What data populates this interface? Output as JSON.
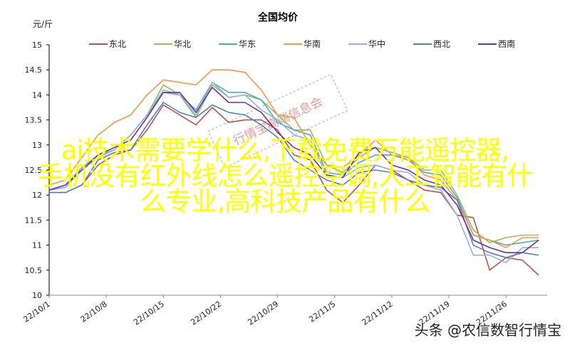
{
  "chart_data": {
    "type": "line",
    "title": "全国均价",
    "ylabel": "元/斤",
    "xlabel": "",
    "ylim": [
      10,
      15
    ],
    "yticks": [
      "10",
      "10.5",
      "11",
      "11.5",
      "12",
      "12.5",
      "13",
      "13.5",
      "14",
      "14.5",
      "15"
    ],
    "xticks": [
      "22/10/1",
      "22/10/8",
      "22/10/15",
      "22/10/22",
      "22/10/29",
      "22/11/5",
      "22/11/12",
      "22/11/19",
      "22/11/26"
    ],
    "grid": false,
    "legend_position": "top",
    "x": [
      "22/10/1",
      "22/10/3",
      "22/10/5",
      "22/10/7",
      "22/10/9",
      "22/10/11",
      "22/10/13",
      "22/10/15",
      "22/10/17",
      "22/10/19",
      "22/10/21",
      "22/10/23",
      "22/10/25",
      "22/10/27",
      "22/10/29",
      "22/10/31",
      "22/11/2",
      "22/11/4",
      "22/11/6",
      "22/11/8",
      "22/11/10",
      "22/11/12",
      "22/11/14",
      "22/11/16",
      "22/11/18",
      "22/11/20",
      "22/11/22",
      "22/11/24",
      "22/11/26",
      "22/11/28",
      "22/11/30"
    ],
    "series": [
      {
        "name": "东北",
        "color": "#c0504d",
        "values": [
          12.05,
          12.05,
          12.2,
          12.6,
          12.8,
          12.9,
          13.3,
          13.8,
          13.6,
          13.4,
          13.75,
          13.45,
          13.5,
          13.5,
          13.3,
          12.8,
          12.7,
          12.1,
          11.85,
          12.2,
          12.6,
          12.5,
          12.3,
          12.1,
          12.05,
          11.6,
          11.55,
          10.5,
          10.75,
          10.7,
          10.4
        ]
      },
      {
        "name": "华北",
        "color": "#9bbb59",
        "values": [
          12.1,
          12.15,
          12.5,
          12.75,
          12.9,
          13.2,
          13.6,
          14.2,
          14.0,
          13.55,
          14.2,
          13.95,
          14.0,
          13.9,
          13.6,
          13.3,
          13.3,
          12.6,
          12.45,
          12.75,
          12.95,
          12.85,
          12.75,
          12.5,
          12.5,
          12.0,
          11.3,
          11.05,
          11.15,
          11.2,
          11.2
        ]
      },
      {
        "name": "华东",
        "color": "#4bacc6",
        "values": [
          12.1,
          12.2,
          12.55,
          12.8,
          12.9,
          13.2,
          13.6,
          14.05,
          14.0,
          13.7,
          14.25,
          14.05,
          14.05,
          13.9,
          13.45,
          13.3,
          13.2,
          12.45,
          12.4,
          12.65,
          12.8,
          12.8,
          12.7,
          12.45,
          12.4,
          11.95,
          11.2,
          11.1,
          11.0,
          11.05,
          11.1
        ]
      },
      {
        "name": "华南",
        "color": "#f79646",
        "values": [
          12.2,
          12.3,
          12.75,
          13.2,
          13.45,
          13.6,
          14.0,
          14.3,
          14.25,
          14.2,
          14.5,
          14.5,
          14.45,
          14.1,
          13.6,
          13.55,
          13.0,
          12.6,
          12.55,
          12.8,
          13.1,
          12.8,
          12.75,
          12.4,
          12.3,
          11.9,
          11.2,
          11.1,
          10.95,
          11.15,
          11.15
        ]
      },
      {
        "name": "华中",
        "color": "#95b3d7",
        "values": [
          12.1,
          12.15,
          12.55,
          12.8,
          12.9,
          13.2,
          13.6,
          14.1,
          14.0,
          13.6,
          14.25,
          13.95,
          14.0,
          13.7,
          13.5,
          13.2,
          13.1,
          12.4,
          12.35,
          12.55,
          12.6,
          12.5,
          12.45,
          12.2,
          12.1,
          11.6,
          10.8,
          10.8,
          10.65,
          10.95,
          10.95
        ]
      },
      {
        "name": "西北",
        "color": "#4f81bd",
        "values": [
          12.05,
          12.05,
          12.2,
          12.7,
          12.85,
          12.9,
          13.4,
          13.85,
          13.65,
          13.55,
          13.8,
          13.65,
          13.6,
          13.4,
          13.15,
          12.7,
          12.5,
          12.3,
          12.2,
          12.45,
          12.5,
          12.45,
          12.3,
          12.2,
          12.15,
          11.9,
          11.0,
          10.85,
          10.75,
          10.85,
          10.8
        ]
      },
      {
        "name": "西南",
        "color": "#7030a0",
        "values": [
          12.1,
          12.2,
          12.5,
          12.8,
          12.95,
          13.1,
          13.55,
          14.05,
          14.05,
          13.65,
          14.15,
          13.85,
          13.85,
          13.65,
          13.25,
          12.95,
          12.8,
          12.4,
          12.35,
          12.85,
          12.95,
          12.6,
          12.5,
          12.3,
          12.2,
          11.8,
          11.1,
          10.95,
          10.85,
          10.85,
          11.1
        ]
      }
    ]
  },
  "watermark": "行情宝高端信息会",
  "overlay": {
    "color": "#ffff00",
    "lines": [
      "ai技术需要学什么,下载免费万能遥控器,",
      "手机没有红外线怎么遥控空调,人工智能有什",
      "么专业,高科技产品有什么"
    ]
  },
  "footer": "头条 @农信数智行情宝"
}
